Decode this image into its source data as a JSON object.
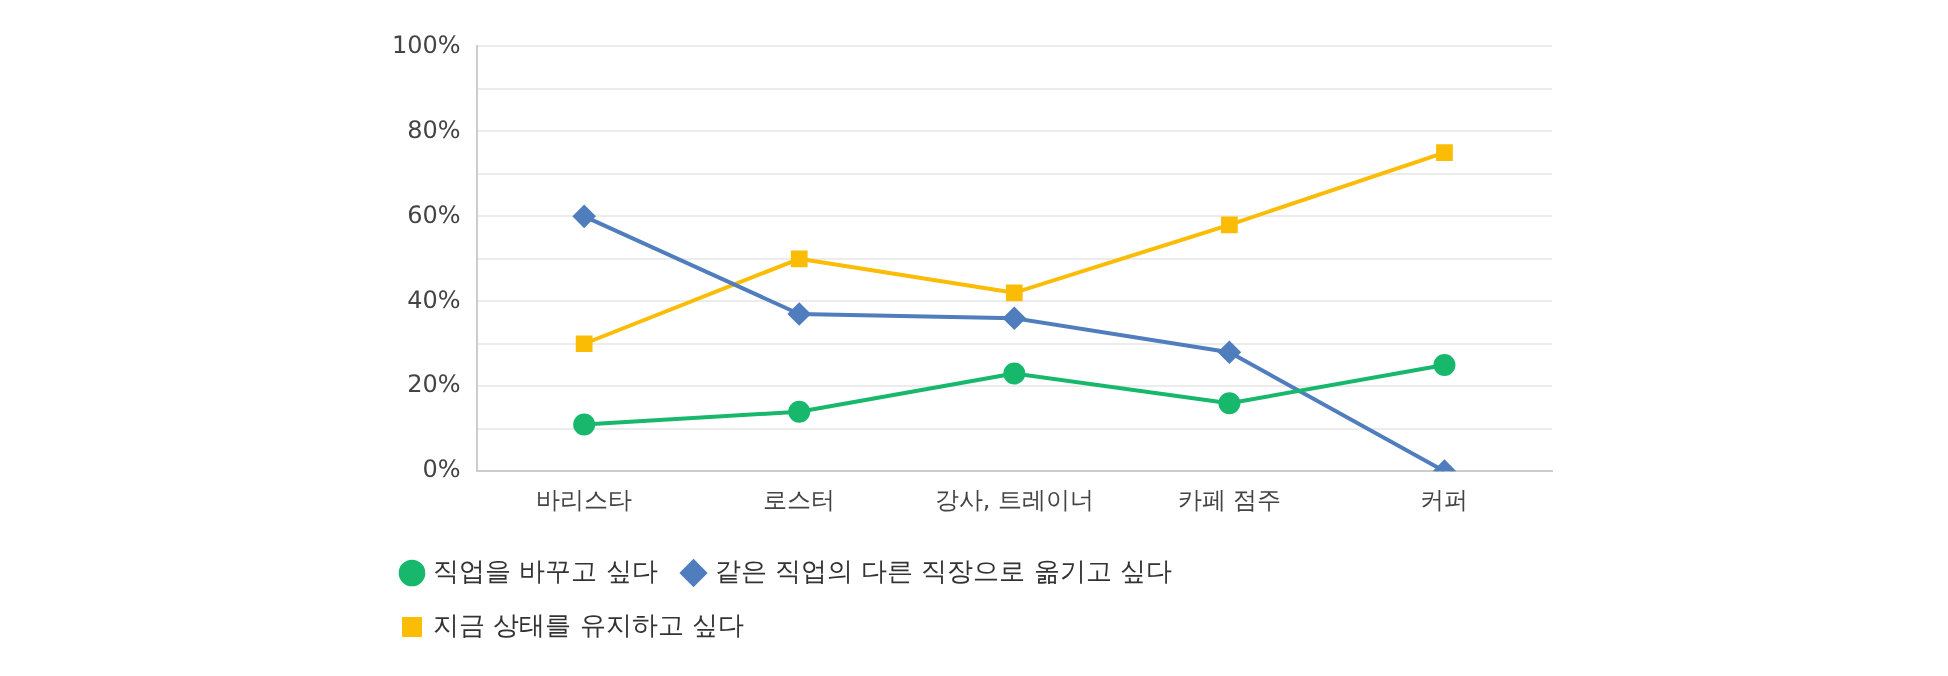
{
  "chart_data": {
    "type": "line",
    "categories": [
      "바리스타",
      "로스터",
      "강사, 트레이너",
      "카페 점주",
      "커퍼"
    ],
    "series": [
      {
        "name": "직업을 바꾸고 싶다",
        "color": "#17b86c",
        "marker": "circle",
        "values": [
          11,
          14,
          23,
          16,
          25
        ]
      },
      {
        "name": "같은 직업의 다른 직장으로 옮기고 싶다",
        "color": "#4f7dbd",
        "marker": "diamond",
        "values": [
          60,
          37,
          36,
          28,
          0
        ]
      },
      {
        "name": "지금 상태를 유지하고 싶다",
        "color": "#fbbc05",
        "marker": "square",
        "values": [
          30,
          50,
          42,
          58,
          75
        ]
      }
    ],
    "ylim": [
      0,
      100
    ],
    "yticks": [
      {
        "value": 0,
        "label": "0%"
      },
      {
        "value": 10,
        "label": null
      },
      {
        "value": 20,
        "label": "20%"
      },
      {
        "value": 30,
        "label": null
      },
      {
        "value": 40,
        "label": "40%"
      },
      {
        "value": 50,
        "label": null
      },
      {
        "value": 60,
        "label": "60%"
      },
      {
        "value": 70,
        "label": null
      },
      {
        "value": 80,
        "label": "80%"
      },
      {
        "value": 90,
        "label": null
      },
      {
        "value": 100,
        "label": "100%"
      }
    ],
    "grid": "y",
    "legend": "bottom left",
    "line_style": "solid"
  }
}
